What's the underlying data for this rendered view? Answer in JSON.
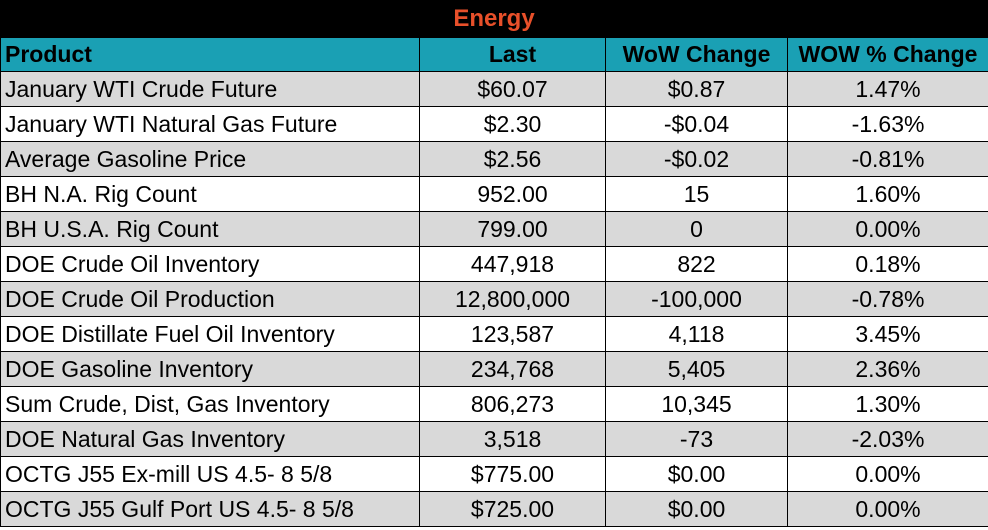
{
  "title": "Energy",
  "columns": [
    "Product",
    "Last",
    "WoW Change",
    "WOW % Change"
  ],
  "rows": [
    {
      "product": "January WTI Crude Future",
      "last": "$60.07",
      "wow": "$0.87",
      "pct": "1.47%"
    },
    {
      "product": "January WTI Natural Gas Future",
      "last": "$2.30",
      "wow": "-$0.04",
      "pct": "-1.63%"
    },
    {
      "product": "Average Gasoline Price",
      "last": "$2.56",
      "wow": "-$0.02",
      "pct": "-0.81%"
    },
    {
      "product": "BH N.A. Rig Count",
      "last": "952.00",
      "wow": "15",
      "pct": "1.60%"
    },
    {
      "product": "BH U.S.A. Rig Count",
      "last": "799.00",
      "wow": "0",
      "pct": "0.00%"
    },
    {
      "product": "DOE Crude Oil Inventory",
      "last": "447,918",
      "wow": "822",
      "pct": "0.18%"
    },
    {
      "product": "DOE Crude Oil Production",
      "last": "12,800,000",
      "wow": "-100,000",
      "pct": "-0.78%"
    },
    {
      "product": "DOE Distillate Fuel Oil Inventory",
      "last": "123,587",
      "wow": "4,118",
      "pct": "3.45%"
    },
    {
      "product": "DOE Gasoline Inventory",
      "last": "234,768",
      "wow": "5,405",
      "pct": "2.36%"
    },
    {
      "product": "Sum Crude, Dist, Gas Inventory",
      "last": "806,273",
      "wow": "10,345",
      "pct": "1.30%"
    },
    {
      "product": "DOE Natural Gas Inventory",
      "last": "3,518",
      "wow": "-73",
      "pct": "-2.03%"
    },
    {
      "product": "OCTG J55 Ex-mill US 4.5- 8 5/8",
      "last": "$775.00",
      "wow": "$0.00",
      "pct": "0.00%"
    },
    {
      "product": "OCTG J55 Gulf Port US 4.5- 8 5/8",
      "last": "$725.00",
      "wow": "$0.00",
      "pct": "0.00%"
    }
  ],
  "colors": {
    "title_bg": "#000000",
    "title_text": "#e8502a",
    "header_bg": "#1aa0b4",
    "row_shade": "#d9d9d9"
  }
}
